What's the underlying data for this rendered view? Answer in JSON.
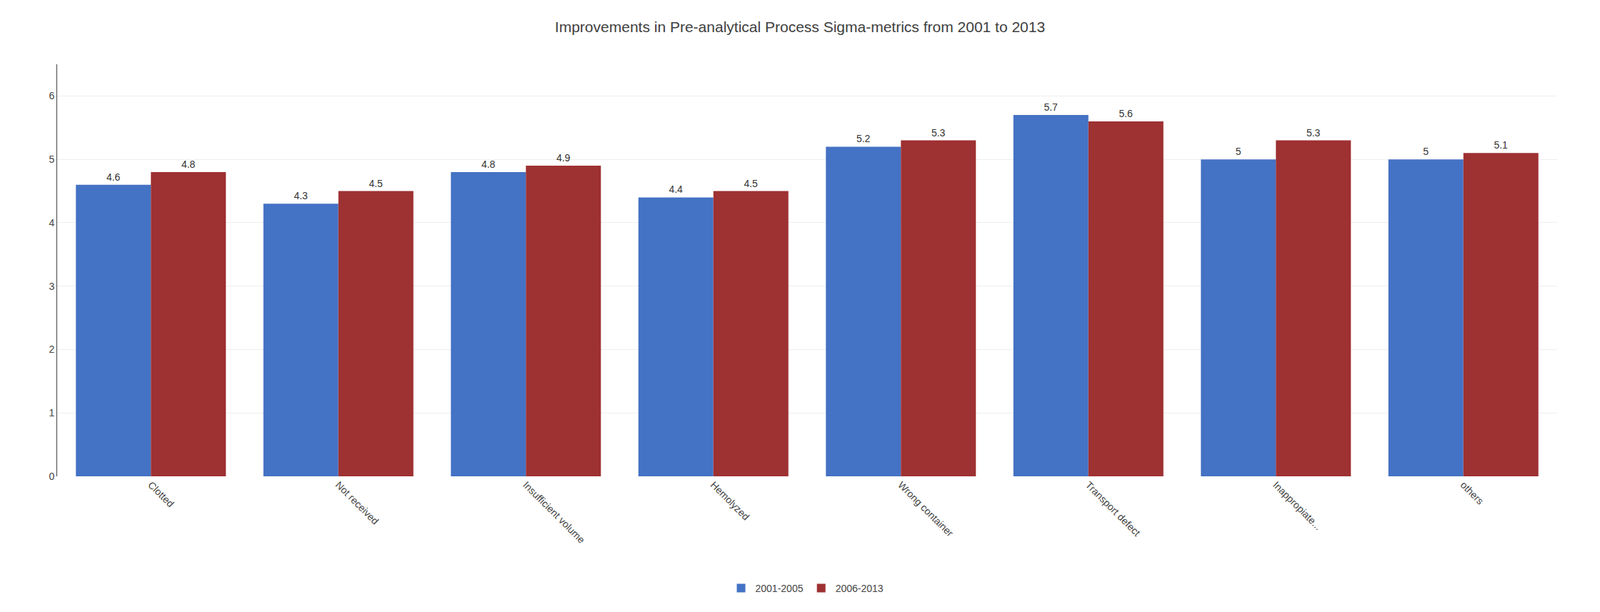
{
  "chart_data": {
    "type": "bar",
    "title": "Improvements in Pre-analytical Process Sigma-metrics from 2001 to 2013",
    "categories": [
      "Clotted",
      "Not received",
      "Insufficient volume",
      "Hemolyzed",
      "Wrong container",
      "Transport defect",
      "Inappropiate...",
      "others"
    ],
    "series": [
      {
        "name": "2001-2005",
        "color": "#4472C4",
        "values": [
          4.6,
          4.3,
          4.8,
          4.4,
          5.2,
          5.7,
          5.0,
          5.0
        ]
      },
      {
        "name": "2006-2013",
        "color": "#9E3132",
        "values": [
          4.8,
          4.5,
          4.9,
          4.5,
          5.3,
          5.6,
          5.3,
          5.1
        ]
      }
    ],
    "ylim": [
      0,
      6.5
    ],
    "yticks": [
      0,
      1,
      2,
      3,
      4,
      5,
      6
    ],
    "grid": true,
    "legend": "bottom",
    "data_labels": true
  }
}
